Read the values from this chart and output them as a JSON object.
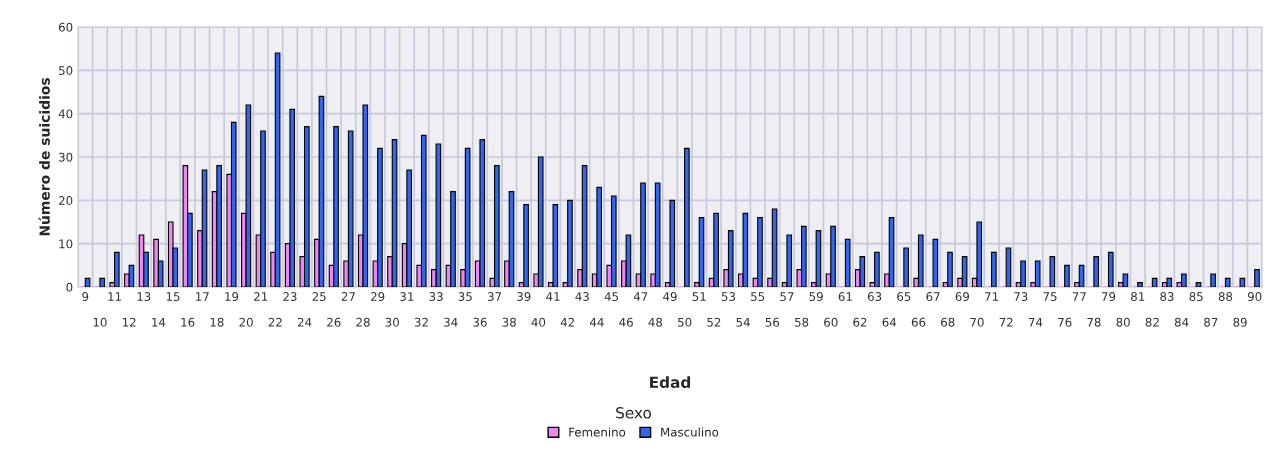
{
  "chart_data": {
    "type": "bar",
    "xlabel": "Edad",
    "ylabel": "Número de suicidios",
    "legend_title": "Sexo",
    "categories": [
      "9",
      "10",
      "11",
      "12",
      "13",
      "14",
      "15",
      "16",
      "17",
      "18",
      "19",
      "20",
      "21",
      "22",
      "23",
      "24",
      "25",
      "26",
      "27",
      "28",
      "29",
      "30",
      "31",
      "32",
      "33",
      "34",
      "35",
      "36",
      "37",
      "38",
      "39",
      "40",
      "41",
      "42",
      "43",
      "44",
      "45",
      "46",
      "47",
      "48",
      "49",
      "50",
      "51",
      "52",
      "53",
      "54",
      "55",
      "56",
      "57",
      "58",
      "59",
      "60",
      "61",
      "62",
      "63",
      "64",
      "65",
      "66",
      "67",
      "68",
      "69",
      "70",
      "71",
      "72",
      "73",
      "74",
      "75",
      "76",
      "77",
      "78",
      "79",
      "80",
      "81",
      "82",
      "83",
      "84",
      "85",
      "87",
      "88",
      "89",
      "90"
    ],
    "series": [
      {
        "name": "Femenino",
        "color": "#ee88ee",
        "values": [
          0,
          0,
          1,
          3,
          12,
          11,
          15,
          28,
          13,
          22,
          26,
          17,
          12,
          8,
          10,
          7,
          11,
          5,
          6,
          12,
          6,
          7,
          10,
          5,
          4,
          5,
          4,
          6,
          2,
          6,
          1,
          3,
          1,
          1,
          4,
          3,
          5,
          6,
          3,
          3,
          1,
          0,
          1,
          2,
          4,
          3,
          2,
          2,
          1,
          4,
          1,
          3,
          0,
          4,
          1,
          3,
          0,
          2,
          0,
          1,
          2,
          2,
          0,
          0,
          1,
          1,
          0,
          0,
          1,
          0,
          0,
          1,
          0,
          0,
          1,
          1,
          0,
          0,
          0,
          0,
          0
        ]
      },
      {
        "name": "Masculino",
        "color": "#3366ee",
        "values": [
          2,
          2,
          8,
          5,
          8,
          6,
          9,
          17,
          27,
          28,
          38,
          42,
          36,
          54,
          41,
          37,
          44,
          37,
          36,
          42,
          32,
          34,
          27,
          35,
          33,
          22,
          32,
          34,
          28,
          22,
          19,
          30,
          19,
          20,
          28,
          23,
          21,
          12,
          24,
          24,
          20,
          32,
          16,
          17,
          13,
          17,
          16,
          18,
          12,
          14,
          13,
          14,
          11,
          7,
          8,
          16,
          9,
          12,
          11,
          8,
          7,
          15,
          8,
          9,
          6,
          6,
          7,
          5,
          5,
          7,
          8,
          3,
          1,
          2,
          2,
          3,
          1,
          3,
          2,
          2,
          4
        ]
      }
    ],
    "ylim": [
      0,
      60
    ],
    "yticks": [
      0,
      10,
      20,
      30,
      40,
      50,
      60
    ],
    "grid": true,
    "legend": "bottom"
  }
}
